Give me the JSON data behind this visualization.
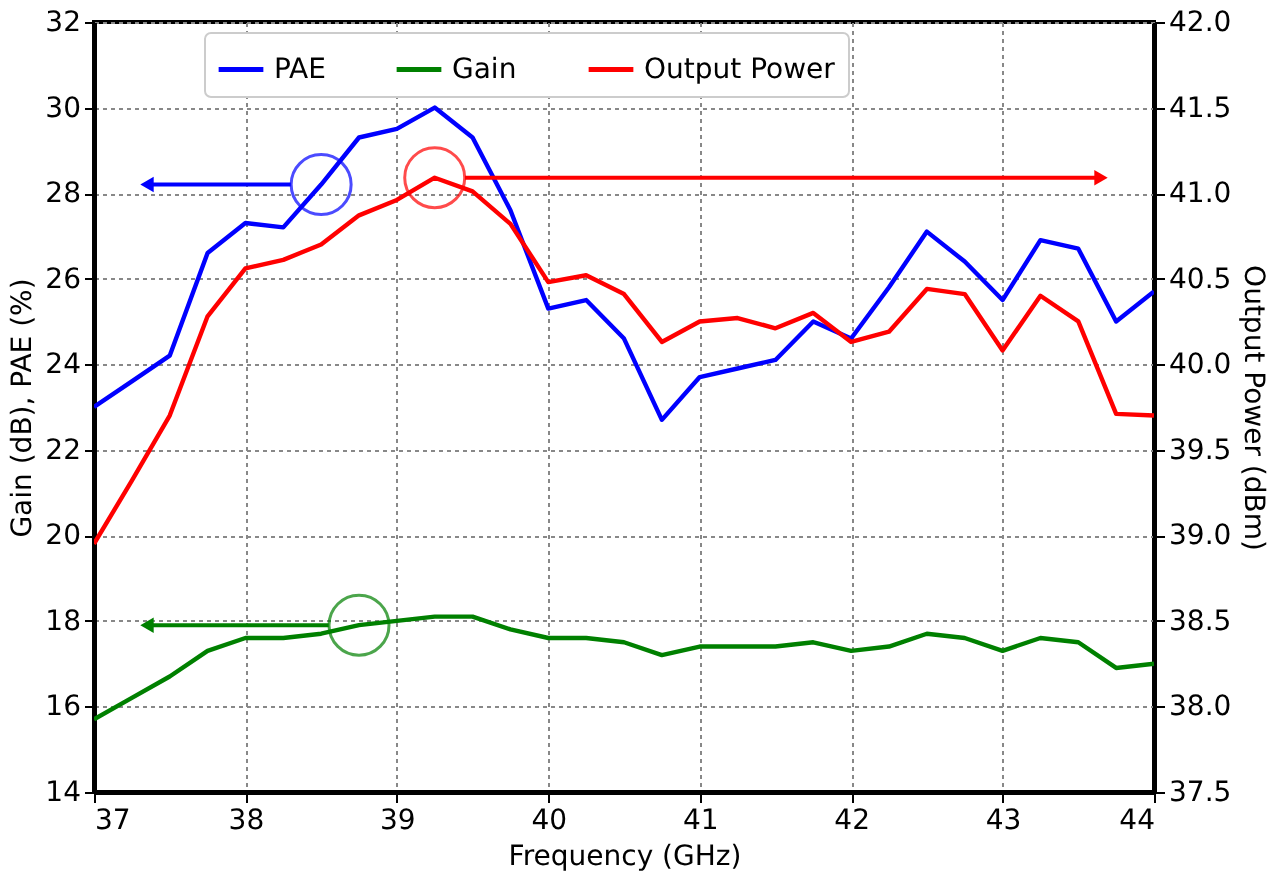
{
  "chart_data": {
    "type": "line",
    "xlabel": "Frequency (GHz)",
    "ylabel": "Gain (dB), PAE (%)",
    "y2label": "Output Power (dBm)",
    "x": [
      37,
      37.25,
      37.5,
      37.75,
      38,
      38.25,
      38.5,
      38.75,
      39,
      39.25,
      39.5,
      39.75,
      40,
      40.25,
      40.5,
      40.75,
      41,
      41.25,
      41.5,
      41.75,
      42,
      42.25,
      42.5,
      42.75,
      43,
      43.25,
      43.5,
      43.75,
      44
    ],
    "series": [
      {
        "name": "PAE",
        "color": "#0000ff",
        "values": [
          23.0,
          23.6,
          24.2,
          26.6,
          27.3,
          27.2,
          28.2,
          29.3,
          29.5,
          30.0,
          29.3,
          27.6,
          25.3,
          25.5,
          24.6,
          22.7,
          23.7,
          23.9,
          24.1,
          25.0,
          24.6,
          25.8,
          27.1,
          26.4,
          25.5,
          26.9,
          26.7,
          25.0,
          25.7
        ]
      },
      {
        "name": "Gain",
        "color": "#008000",
        "values": [
          15.7,
          16.2,
          16.7,
          17.3,
          17.6,
          17.6,
          17.7,
          17.9,
          18.0,
          18.1,
          18.1,
          17.8,
          17.6,
          17.6,
          17.5,
          17.2,
          17.4,
          17.4,
          17.4,
          17.5,
          17.3,
          17.4,
          17.7,
          17.6,
          17.3,
          17.6,
          17.5,
          16.9,
          17.0
        ]
      },
      {
        "name": "Output Power",
        "color": "#ff0000",
        "axis": "y2",
        "values": [
          38.95,
          39.32,
          39.7,
          40.28,
          40.56,
          40.61,
          40.7,
          40.87,
          40.96,
          41.09,
          41.01,
          40.82,
          40.48,
          40.52,
          40.41,
          40.13,
          40.25,
          40.27,
          40.21,
          40.3,
          40.13,
          40.19,
          40.44,
          40.41,
          40.08,
          40.4,
          40.25,
          39.71,
          39.7
        ]
      }
    ],
    "xlim": [
      37,
      44
    ],
    "xticks": [
      37,
      38,
      39,
      40,
      41,
      42,
      43,
      44
    ],
    "ylim": [
      14,
      32
    ],
    "yticks": [
      14,
      16,
      18,
      20,
      22,
      24,
      26,
      28,
      30,
      32
    ],
    "y2lim": [
      37.5,
      42.0
    ],
    "y2ticks": [
      {
        "value": 37.5,
        "label": "37.5"
      },
      {
        "value": 38,
        "label": "38.0"
      },
      {
        "value": 38.5,
        "label": "38.5"
      },
      {
        "value": 39,
        "label": "39.0"
      },
      {
        "value": 39.5,
        "label": "39.5"
      },
      {
        "value": 40,
        "label": "40.0"
      },
      {
        "value": 40.5,
        "label": "40.5"
      },
      {
        "value": 41,
        "label": "41.0"
      },
      {
        "value": 41.5,
        "label": "41.5"
      },
      {
        "value": 42,
        "label": "42.0"
      }
    ],
    "grid": true,
    "legend": "top",
    "line_style": "solid",
    "marker": "none"
  }
}
